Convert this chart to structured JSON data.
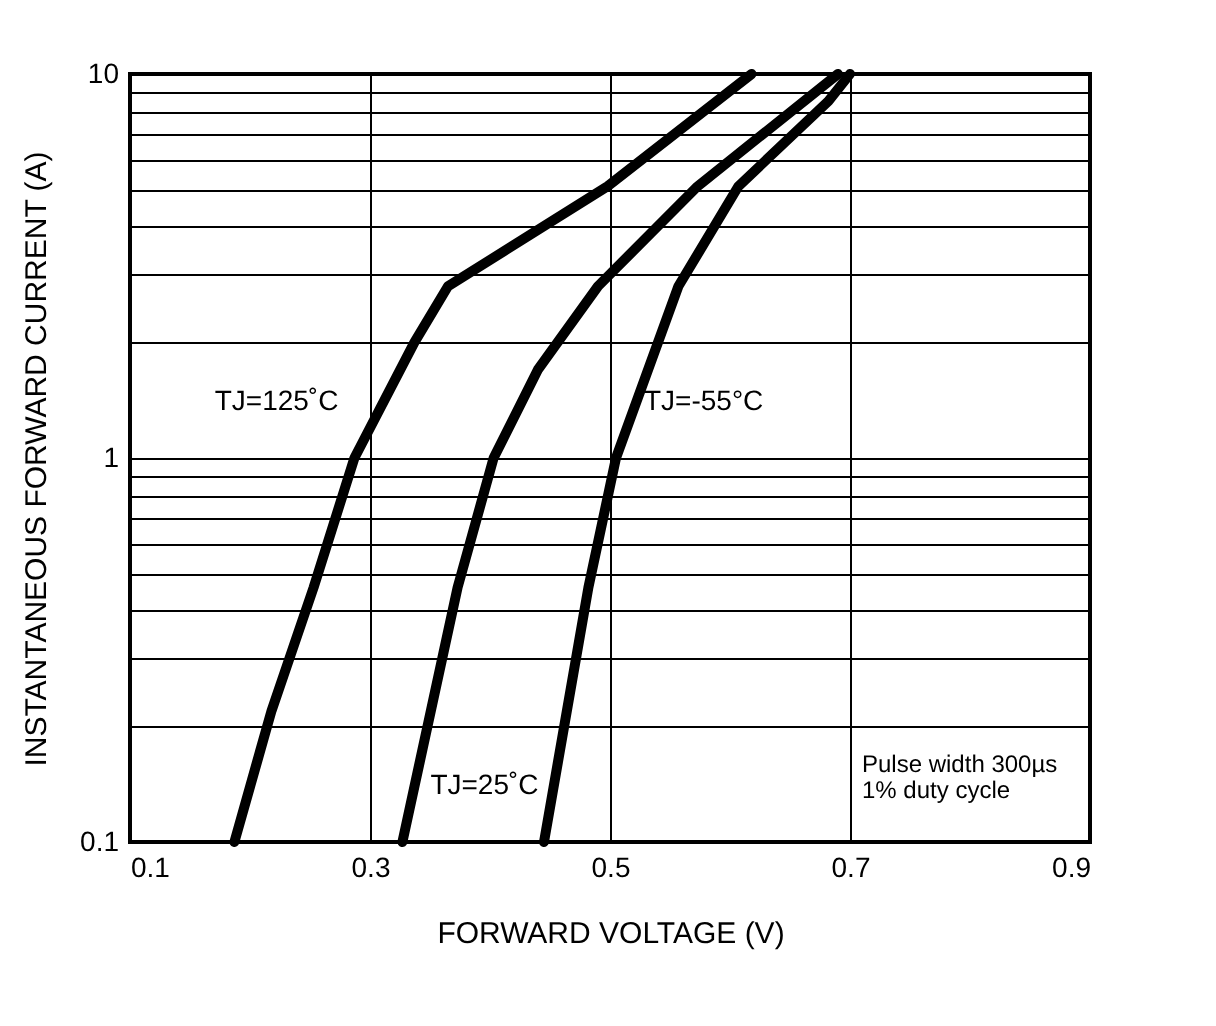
{
  "chart_data": {
    "type": "line",
    "xlabel": "FORWARD VOLTAGE (V)",
    "ylabel": "INSTANTANEOUS FORWARD CURRENT (A)",
    "log": "y",
    "grid": true,
    "legend": false,
    "marker": "none",
    "line_style": "solid",
    "xlim": [
      0.1,
      0.9
    ],
    "xticks": [
      0.1,
      0.3,
      0.5,
      0.7,
      0.9
    ],
    "ylim": [
      0.1,
      10
    ],
    "yticks": [
      0.1,
      {
        "value": 0.2,
        "label": null
      },
      {
        "value": 0.3,
        "label": null
      },
      {
        "value": 0.4,
        "label": null
      },
      {
        "value": 0.5,
        "label": null
      },
      {
        "value": 0.6,
        "label": null
      },
      {
        "value": 0.7,
        "label": null
      },
      {
        "value": 0.8,
        "label": null
      },
      {
        "value": 0.9,
        "label": null
      },
      1,
      {
        "value": 2,
        "label": null
      },
      {
        "value": 3,
        "label": null
      },
      {
        "value": 4,
        "label": null
      },
      {
        "value": 5,
        "label": null
      },
      {
        "value": 6,
        "label": null
      },
      {
        "value": 7,
        "label": null
      },
      {
        "value": 8,
        "label": null
      },
      {
        "value": 9,
        "label": null
      },
      10
    ],
    "series": [
      {
        "name": "TJ=125˚C",
        "color": "#000000",
        "x": [
          0.187,
          0.218,
          0.253,
          0.287,
          0.337,
          0.365,
          0.498,
          0.618
        ],
        "values": [
          0.1,
          0.22,
          0.46,
          1,
          2,
          2.8,
          5.1,
          10
        ]
      },
      {
        "name": "TJ=25˚C",
        "color": "#000000",
        "x": [
          0.327,
          0.373,
          0.403,
          0.44,
          0.49,
          0.573,
          0.69
        ],
        "values": [
          0.1,
          0.46,
          1,
          1.7,
          2.8,
          5.1,
          10
        ]
      },
      {
        "name": "TJ=-55°C",
        "color": "#000000",
        "x": [
          0.445,
          0.482,
          0.505,
          0.557,
          0.607,
          0.682,
          0.7
        ],
        "values": [
          0.1,
          0.46,
          1,
          2.8,
          5.1,
          8.5,
          10
        ]
      }
    ],
    "annotations": [
      "Pulse width 300µs\n1% duty cycle"
    ]
  }
}
